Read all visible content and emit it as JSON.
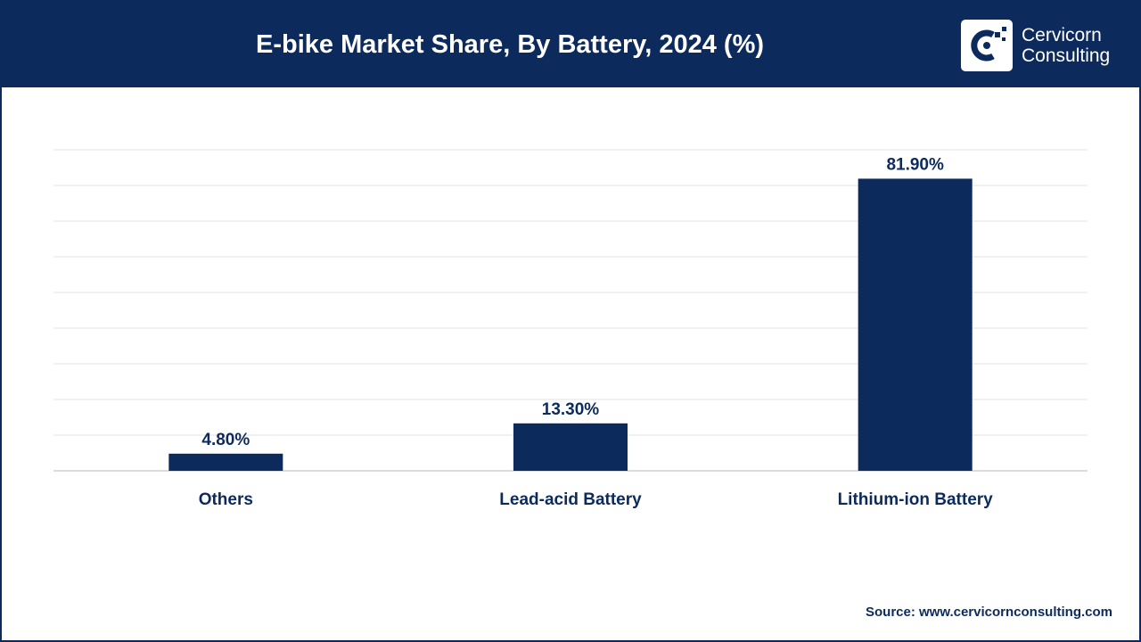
{
  "header": {
    "title": "E-bike Market Share, By Battery, 2024 (%)",
    "logo_line1": "Cervicorn",
    "logo_line2": "Consulting"
  },
  "footer": {
    "source": "Source: www.cervicornconsulting.com"
  },
  "colors": {
    "primary": "#0d2a5c",
    "grid": "#e3e3e3",
    "axis": "#d0d0d0"
  },
  "chart_data": {
    "type": "bar",
    "title": "E-bike Market Share, By Battery, 2024 (%)",
    "categories": [
      "Others",
      "Lead-acid Battery",
      "Lithium-ion Battery"
    ],
    "values": [
      4.8,
      13.3,
      81.9
    ],
    "value_labels": [
      "4.80%",
      "13.30%",
      "81.90%"
    ],
    "xlabel": "",
    "ylabel": "",
    "ylim": [
      0,
      90
    ],
    "grid": true,
    "legend": "none"
  }
}
